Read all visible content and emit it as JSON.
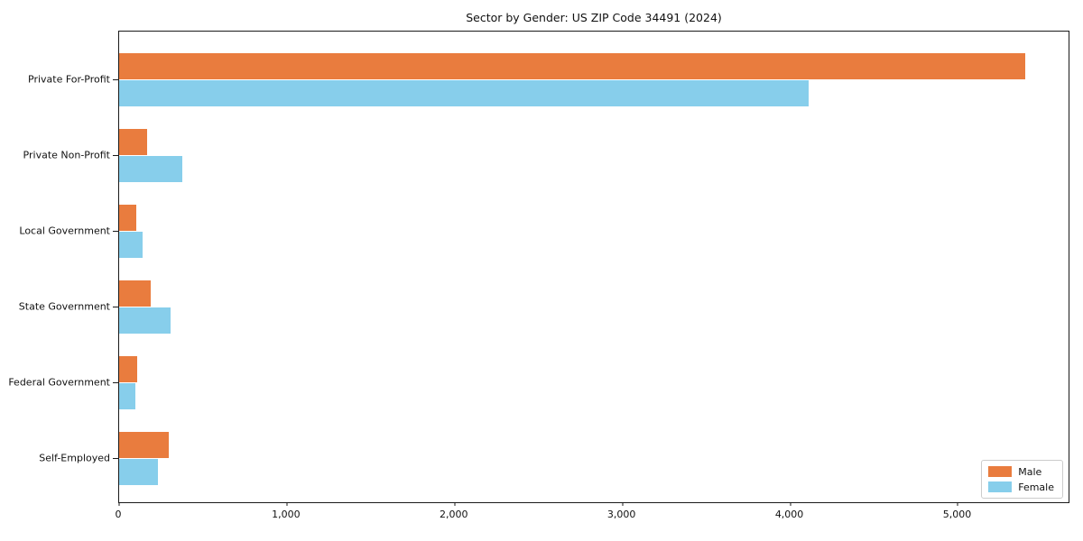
{
  "title": "Sector by Gender: US ZIP Code 34491 (2024)",
  "chart_data": {
    "type": "bar",
    "orientation": "horizontal",
    "title": "Sector by Gender: US ZIP Code 34491 (2024)",
    "categories": [
      "Private For-Profit",
      "Private Non-Profit",
      "Local Government",
      "State Government",
      "Federal Government",
      "Self-Employed"
    ],
    "series": [
      {
        "name": "Male",
        "color": "#E97C3E",
        "values": [
          5400,
          165,
          100,
          190,
          105,
          295
        ]
      },
      {
        "name": "Female",
        "color": "#87CEEB",
        "values": [
          4110,
          375,
          140,
          305,
          95,
          230
        ]
      }
    ],
    "xlabel": "",
    "ylabel": "",
    "xlim": [
      0,
      5670
    ],
    "x_ticks": [
      0,
      1000,
      2000,
      3000,
      4000,
      5000
    ],
    "x_tick_labels": [
      "0",
      "1,000",
      "2,000",
      "3,000",
      "4,000",
      "5,000"
    ],
    "grid": false,
    "legend_position": "lower right"
  },
  "legend": {
    "entries": [
      {
        "label": "Male",
        "color": "#E97C3E"
      },
      {
        "label": "Female",
        "color": "#87CEEB"
      }
    ]
  }
}
